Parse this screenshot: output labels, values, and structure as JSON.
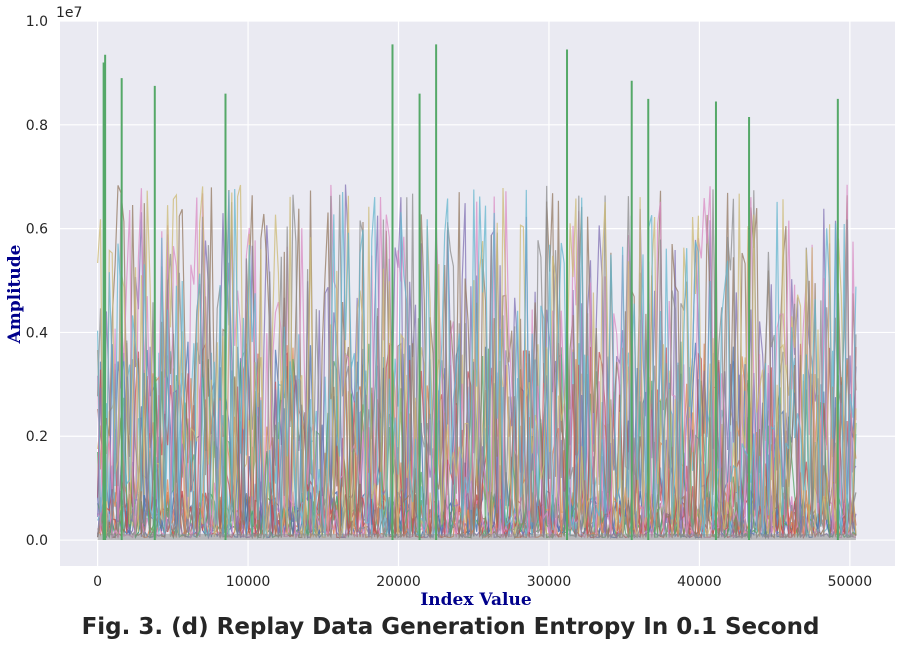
{
  "chart_data": {
    "type": "line",
    "title": "",
    "xlabel": "Index Value",
    "ylabel": "Amplitude",
    "xlim": [
      -2500,
      53000
    ],
    "ylim": [
      -500000.0,
      10000000.0
    ],
    "y_scale_label": "1e7",
    "x_ticks": [
      0,
      10000,
      20000,
      30000,
      40000,
      50000
    ],
    "x_tick_labels": [
      "0",
      "10000",
      "20000",
      "30000",
      "40000",
      "50000"
    ],
    "y_ticks": [
      0,
      2000000,
      4000000,
      6000000,
      8000000,
      10000000
    ],
    "y_tick_labels": [
      "0.0",
      "0.2",
      "0.4",
      "0.6",
      "0.8",
      "1.0"
    ],
    "grid": true,
    "background": "#eaeaf2",
    "palette": [
      "#4c72b0",
      "#dd8452",
      "#55a868",
      "#c44e52",
      "#8172b3",
      "#937860",
      "#da8bc3",
      "#8c8c8c",
      "#ccb974",
      "#64b5cd"
    ],
    "x_extent": [
      0,
      50400
    ],
    "notable_peaks": [
      {
        "x": 400,
        "y": 9200000,
        "series_color": "#55a868"
      },
      {
        "x": 500,
        "y": 9350000,
        "series_color": "#55a868"
      },
      {
        "x": 1600,
        "y": 8900000,
        "series_color": "#55a868"
      },
      {
        "x": 3800,
        "y": 8750000,
        "series_color": "#55a868"
      },
      {
        "x": 8500,
        "y": 8600000,
        "series_color": "#55a868"
      },
      {
        "x": 19600,
        "y": 9550000,
        "series_color": "#55a868"
      },
      {
        "x": 21400,
        "y": 8600000,
        "series_color": "#55a868"
      },
      {
        "x": 22500,
        "y": 9550000,
        "series_color": "#55a868"
      },
      {
        "x": 31200,
        "y": 9450000,
        "series_color": "#55a868"
      },
      {
        "x": 35500,
        "y": 8850000,
        "series_color": "#55a868"
      },
      {
        "x": 36600,
        "y": 8500000,
        "series_color": "#55a868"
      },
      {
        "x": 41100,
        "y": 8450000,
        "series_color": "#55a868"
      },
      {
        "x": 43300,
        "y": 8150000,
        "series_color": "#55a868"
      },
      {
        "x": 49200,
        "y": 8500000,
        "series_color": "#55a868"
      }
    ]
  },
  "caption": "Fig. 3. (d) Replay Data Generation Entropy In 0.1 Second"
}
